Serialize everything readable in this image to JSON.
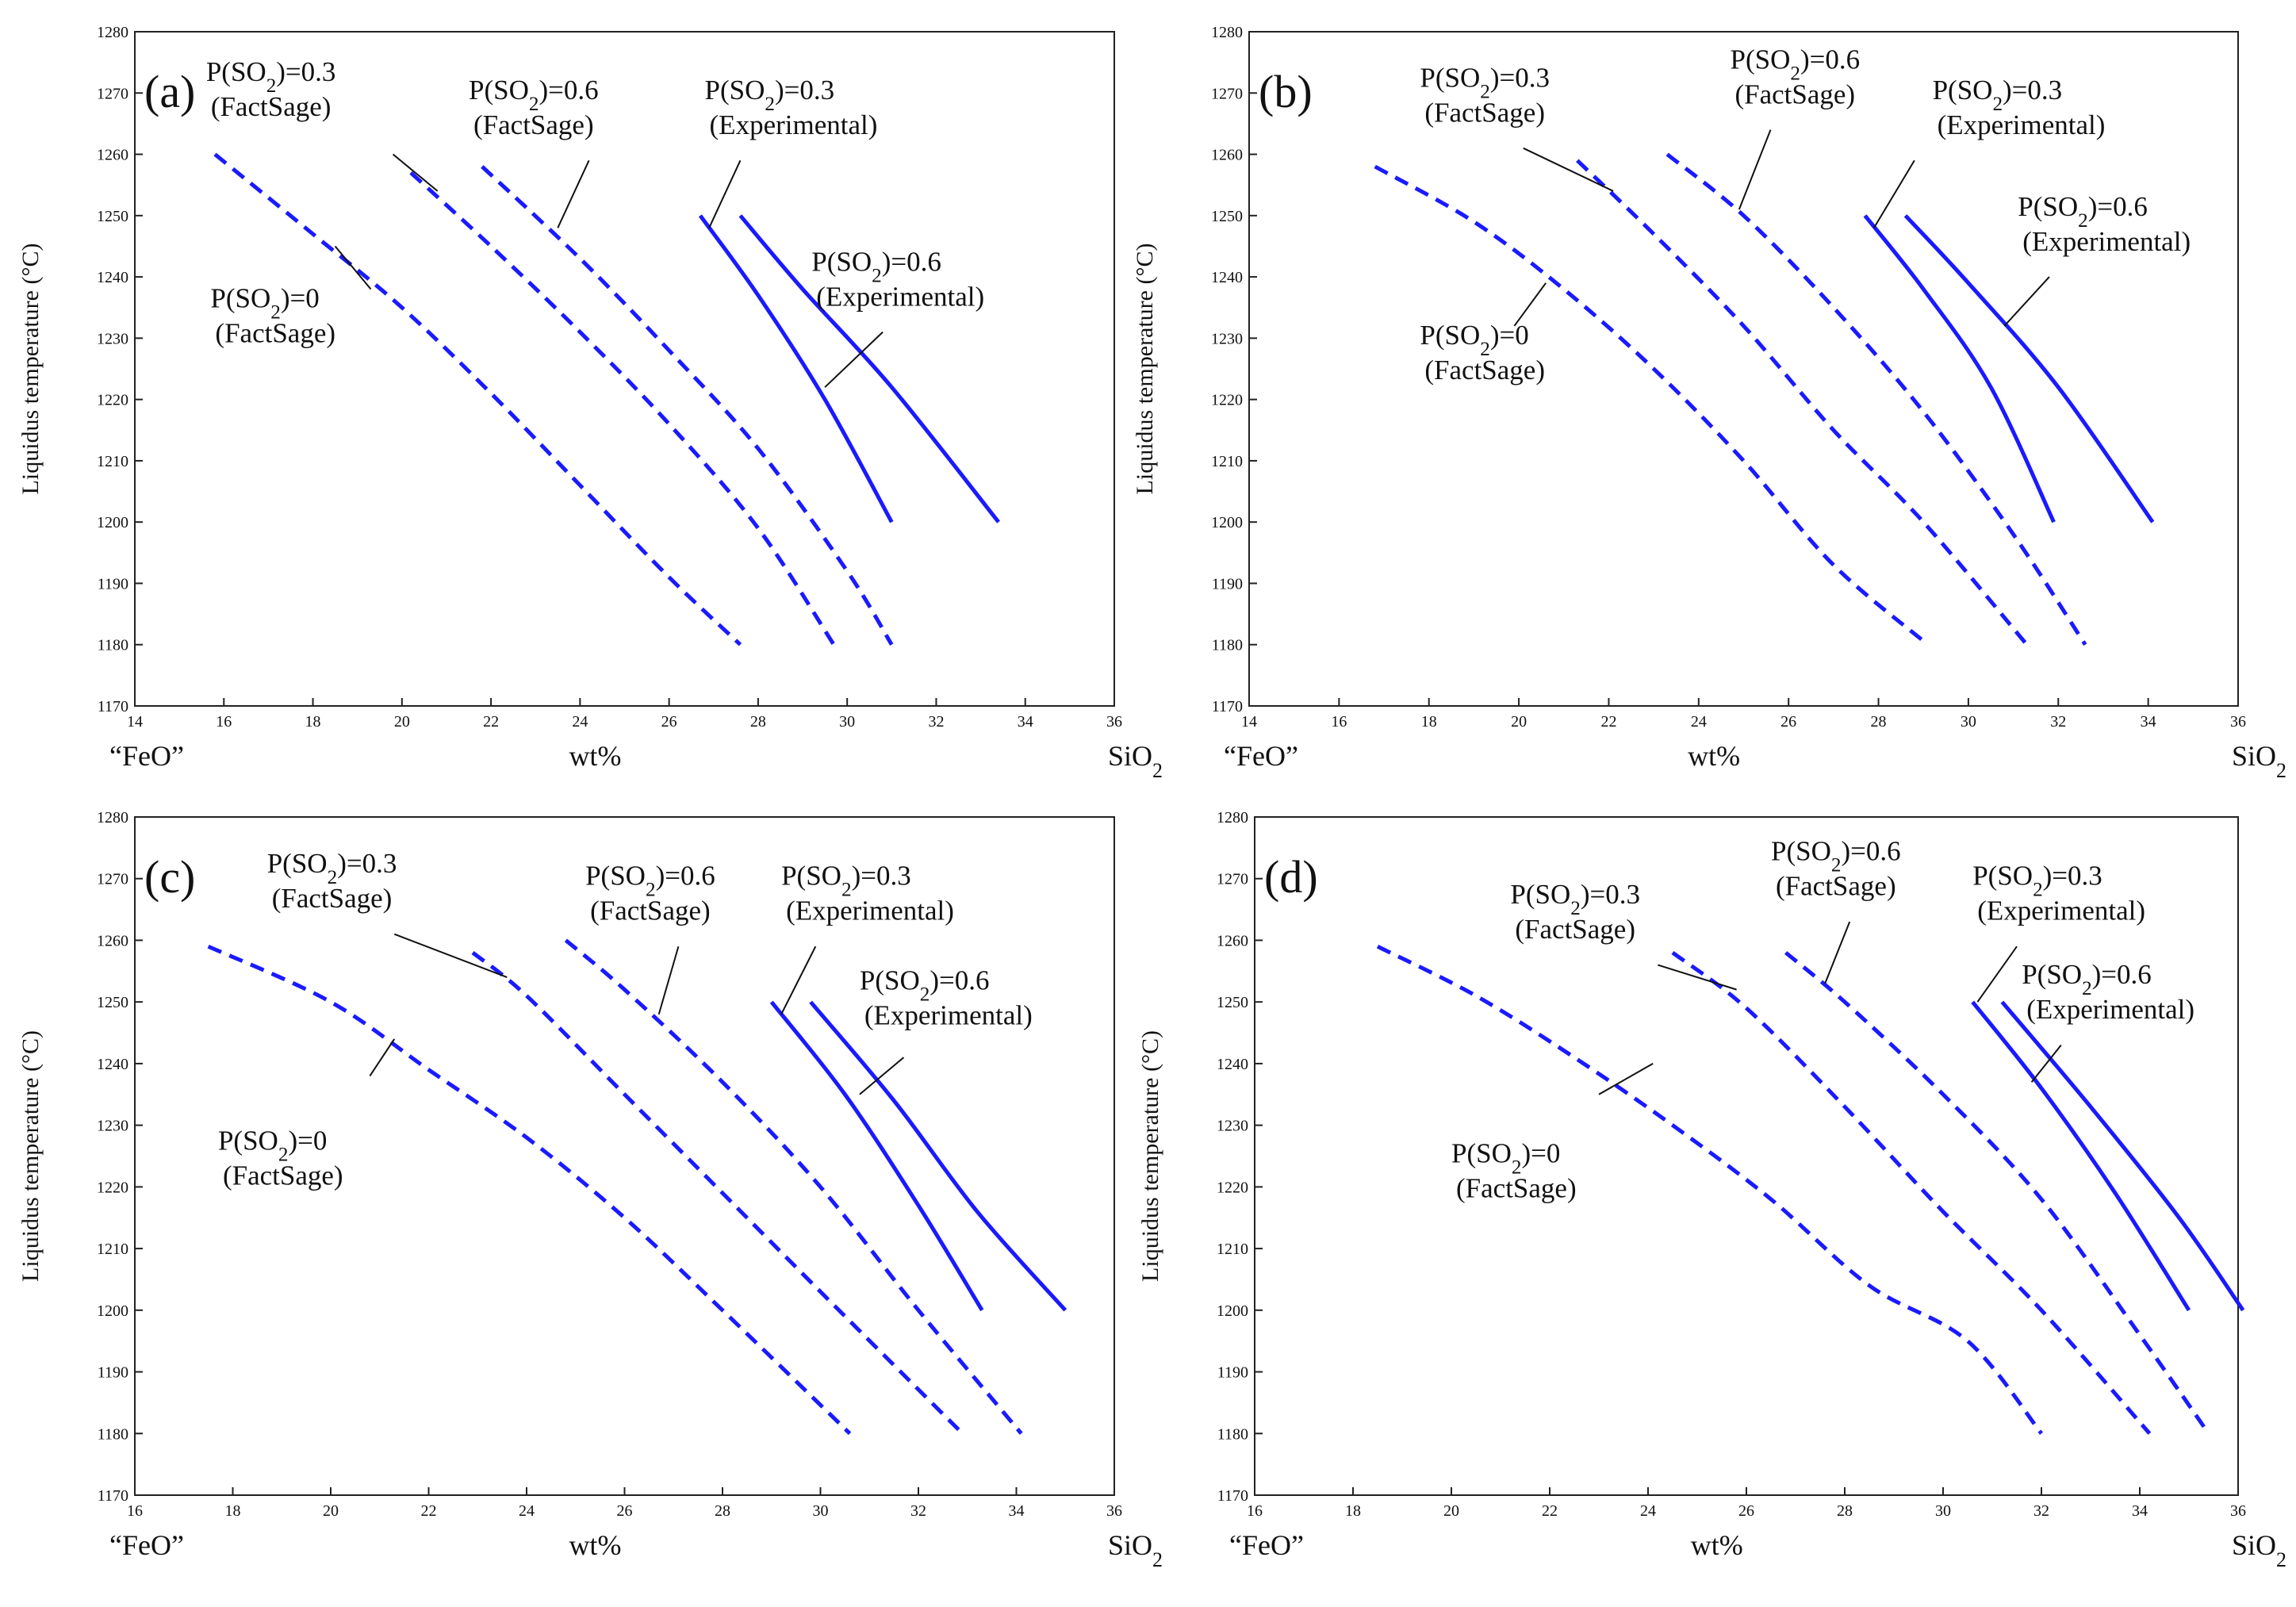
{
  "chart_data": [
    {
      "type": "line",
      "panel": "(a)",
      "xlim": [
        14,
        36
      ],
      "ylim": [
        1170,
        1280
      ],
      "xticks": [
        14,
        16,
        18,
        20,
        22,
        24,
        26,
        28,
        30,
        32,
        34,
        36
      ],
      "yticks": [
        1170,
        1180,
        1190,
        1200,
        1210,
        1220,
        1230,
        1240,
        1250,
        1260,
        1270,
        1280
      ],
      "xlabel": "wt%",
      "x_left_label": "“FeO”",
      "x_right_label": "SiO2",
      "ylabel": "Liquidus temperature (°C)",
      "series": [
        {
          "name": "P(SO2)=0 (FactSage)",
          "style": "dashed",
          "x": [
            15.8,
            18,
            20,
            22,
            24,
            26,
            27.6
          ],
          "y": [
            1260,
            1247,
            1235,
            1221,
            1206,
            1191,
            1180
          ],
          "label": {
            "line1": "P(SO2)=0",
            "line2": "(FactSage)",
            "anchor": "left",
            "tx": 15.7,
            "ty": 1235,
            "lx1": 19.3,
            "ly1": 1238,
            "lx2": 18.5,
            "ly2": 1245
          }
        },
        {
          "name": "P(SO2)=0.3 (FactSage)",
          "style": "dashed",
          "x": [
            20.2,
            22,
            24,
            26,
            28,
            29.7
          ],
          "y": [
            1257,
            1245,
            1231,
            1216,
            1199,
            1180
          ],
          "label": {
            "line1": "P(SO2)=0.3",
            "line2": "(FactSage)",
            "anchor": "left",
            "tx": 15.6,
            "ty": 1272,
            "lx1": 19.8,
            "ly1": 1260,
            "lx2": 20.8,
            "ly2": 1254
          }
        },
        {
          "name": "P(SO2)=0.6 (FactSage)",
          "style": "dashed",
          "x": [
            21.8,
            24,
            26,
            28,
            30,
            31
          ],
          "y": [
            1258,
            1243,
            1228,
            1212,
            1192,
            1180
          ],
          "label": {
            "line1": "P(SO2)=0.6",
            "line2": "(FactSage)",
            "anchor": "left",
            "tx": 21.5,
            "ty": 1269,
            "lx1": 24.2,
            "ly1": 1259,
            "lx2": 23.5,
            "ly2": 1248
          }
        },
        {
          "name": "P(SO2)=0.3 (Experimental)",
          "style": "solid",
          "x": [
            26.7,
            28,
            29.5,
            31
          ],
          "y": [
            1250,
            1237,
            1220,
            1200
          ],
          "label": {
            "line1": "P(SO2)=0.3",
            "line2": "(Experimental)",
            "anchor": "left",
            "tx": 26.8,
            "ty": 1269,
            "lx1": 27.6,
            "ly1": 1259,
            "lx2": 26.9,
            "ly2": 1248
          }
        },
        {
          "name": "P(SO2)=0.6 (Experimental)",
          "style": "solid",
          "x": [
            27.6,
            29,
            31,
            33.4
          ],
          "y": [
            1250,
            1238,
            1222,
            1200
          ],
          "label": {
            "line1": "P(SO2)=0.6",
            "line2": "(Experimental)",
            "anchor": "left",
            "tx": 29.2,
            "ty": 1241,
            "lx1": 30.8,
            "ly1": 1231,
            "lx2": 29.5,
            "ly2": 1222
          }
        }
      ]
    },
    {
      "type": "line",
      "panel": "(b)",
      "xlim": [
        14,
        36
      ],
      "ylim": [
        1170,
        1280
      ],
      "xticks": [
        14,
        16,
        18,
        20,
        22,
        24,
        26,
        28,
        30,
        32,
        34,
        36
      ],
      "yticks": [
        1170,
        1180,
        1190,
        1200,
        1210,
        1220,
        1230,
        1240,
        1250,
        1260,
        1270,
        1280
      ],
      "xlabel": "wt%",
      "x_left_label": "“FeO”",
      "x_right_label": "SiO2",
      "ylabel": "Liquidus temperature (°C)",
      "series": [
        {
          "name": "P(SO2)=0 (FactSage)",
          "style": "dashed",
          "x": [
            16.8,
            19,
            21,
            23,
            25,
            27,
            29.1
          ],
          "y": [
            1258,
            1249,
            1238,
            1225,
            1210,
            1193,
            1180
          ],
          "label": {
            "line1": "P(SO2)=0",
            "line2": "(FactSage)",
            "anchor": "left",
            "tx": 17.8,
            "ty": 1229,
            "lx1": 19.9,
            "ly1": 1232,
            "lx2": 20.6,
            "ly2": 1239
          }
        },
        {
          "name": "P(SO2)=0.3 (FactSage)",
          "style": "dashed",
          "x": [
            21.3,
            23,
            25,
            27,
            29,
            31.3
          ],
          "y": [
            1259,
            1247,
            1232,
            1215,
            1200,
            1180
          ],
          "label": {
            "line1": "P(SO2)=0.3",
            "line2": "(FactSage)",
            "anchor": "left",
            "tx": 17.8,
            "ty": 1271,
            "lx1": 20.1,
            "ly1": 1261,
            "lx2": 22.1,
            "ly2": 1254
          }
        },
        {
          "name": "P(SO2)=0.6 (FactSage)",
          "style": "dashed",
          "x": [
            23.3,
            25,
            27,
            29,
            31,
            32.6
          ],
          "y": [
            1260,
            1250,
            1235,
            1218,
            1198,
            1180
          ],
          "label": {
            "line1": "P(SO2)=0.6",
            "line2": "(FactSage)",
            "anchor": "left",
            "tx": 24.7,
            "ty": 1274,
            "lx1": 25.6,
            "ly1": 1264,
            "lx2": 24.9,
            "ly2": 1251
          }
        },
        {
          "name": "P(SO2)=0.3 (Experimental)",
          "style": "solid",
          "x": [
            27.7,
            29,
            30.5,
            31.9
          ],
          "y": [
            1250,
            1238,
            1222,
            1200
          ],
          "label": {
            "line1": "P(SO2)=0.3",
            "line2": "(Experimental)",
            "anchor": "left",
            "tx": 29.2,
            "ty": 1269,
            "lx1": 28.8,
            "ly1": 1259,
            "lx2": 27.9,
            "ly2": 1248
          }
        },
        {
          "name": "P(SO2)=0.6 (Experimental)",
          "style": "solid",
          "x": [
            28.6,
            30,
            32,
            34.1
          ],
          "y": [
            1250,
            1239,
            1222,
            1200
          ],
          "label": {
            "line1": "P(SO2)=0.6",
            "line2": "(Experimental)",
            "anchor": "left",
            "tx": 31.1,
            "ty": 1250,
            "lx1": 31.8,
            "ly1": 1240,
            "lx2": 30.8,
            "ly2": 1232
          }
        }
      ]
    },
    {
      "type": "line",
      "panel": "(c)",
      "xlim": [
        16,
        36
      ],
      "ylim": [
        1170,
        1280
      ],
      "xticks": [
        16,
        18,
        20,
        22,
        24,
        26,
        28,
        30,
        32,
        34,
        36
      ],
      "yticks": [
        1170,
        1180,
        1190,
        1200,
        1210,
        1220,
        1230,
        1240,
        1250,
        1260,
        1270,
        1280
      ],
      "xlabel": "wt%",
      "x_left_label": "“FeO”",
      "x_right_label": "SiO2",
      "ylabel": "Liquidus temperature (°C)",
      "series": [
        {
          "name": "P(SO2)=0 (FactSage)",
          "style": "dashed",
          "x": [
            17.5,
            20,
            22,
            24,
            26,
            28,
            30.6
          ],
          "y": [
            1259,
            1250,
            1239,
            1228,
            1215,
            1200,
            1180
          ],
          "label": {
            "line1": "P(SO2)=0",
            "line2": "(FactSage)",
            "anchor": "left",
            "tx": 17.7,
            "ty": 1226,
            "lx1": 20.8,
            "ly1": 1238,
            "lx2": 21.3,
            "ly2": 1244
          }
        },
        {
          "name": "P(SO2)=0.3 (FactSage)",
          "style": "dashed",
          "x": [
            22.9,
            24,
            26,
            28,
            30,
            32.9
          ],
          "y": [
            1258,
            1251,
            1235,
            1219,
            1203,
            1180
          ],
          "label": {
            "line1": "P(SO2)=0.3",
            "line2": "(FactSage)",
            "anchor": "left",
            "tx": 18.7,
            "ty": 1271,
            "lx1": 21.3,
            "ly1": 1261,
            "lx2": 23.6,
            "ly2": 1254
          }
        },
        {
          "name": "P(SO2)=0.6 (FactSage)",
          "style": "dashed",
          "x": [
            24.8,
            26,
            28,
            30,
            32,
            34.1
          ],
          "y": [
            1260,
            1252,
            1237,
            1220,
            1200,
            1180
          ],
          "label": {
            "line1": "P(SO2)=0.6",
            "line2": "(FactSage)",
            "anchor": "left",
            "tx": 25.2,
            "ty": 1269,
            "lx1": 27.1,
            "ly1": 1259,
            "lx2": 26.7,
            "ly2": 1248
          }
        },
        {
          "name": "P(SO2)=0.3 (Experimental)",
          "style": "solid",
          "x": [
            29,
            30.5,
            32,
            33.3
          ],
          "y": [
            1250,
            1235,
            1217,
            1200
          ],
          "label": {
            "line1": "P(SO2)=0.3",
            "line2": "(Experimental)",
            "anchor": "left",
            "tx": 29.2,
            "ty": 1269,
            "lx1": 29.9,
            "ly1": 1259,
            "lx2": 29.2,
            "ly2": 1248
          }
        },
        {
          "name": "P(SO2)=0.6 (Experimental)",
          "style": "solid",
          "x": [
            29.8,
            31.5,
            33.2,
            35
          ],
          "y": [
            1250,
            1234,
            1216,
            1200
          ],
          "label": {
            "line1": "P(SO2)=0.6",
            "line2": "(Experimental)",
            "anchor": "left",
            "tx": 30.8,
            "ty": 1252,
            "lx1": 31.7,
            "ly1": 1241,
            "lx2": 30.8,
            "ly2": 1235
          }
        }
      ]
    },
    {
      "type": "line",
      "panel": "(d)",
      "xlim": [
        16,
        36
      ],
      "ylim": [
        1170,
        1280
      ],
      "xticks": [
        16,
        18,
        20,
        22,
        24,
        26,
        28,
        30,
        32,
        34,
        36
      ],
      "yticks": [
        1170,
        1180,
        1190,
        1200,
        1210,
        1220,
        1230,
        1240,
        1250,
        1260,
        1270,
        1280
      ],
      "xlabel": "wt%",
      "x_left_label": "“FeO”",
      "x_right_label": "SiO2",
      "ylabel": "Liquidus temperature (°C)",
      "series": [
        {
          "name": "P(SO2)=0 (FactSage)",
          "style": "dashed",
          "x": [
            18.5,
            20.5,
            22.5,
            24.5,
            26.5,
            28.5,
            30.5,
            32
          ],
          "y": [
            1259,
            1251,
            1241,
            1230,
            1218,
            1204,
            1195,
            1180
          ],
          "label": {
            "line1": "P(SO2)=0",
            "line2": "(FactSage)",
            "anchor": "left",
            "tx": 20,
            "ty": 1224,
            "lx1": 23,
            "ly1": 1235,
            "lx2": 24.1,
            "ly2": 1240
          }
        },
        {
          "name": "P(SO2)=0.3 (FactSage)",
          "style": "dashed",
          "x": [
            24.5,
            26,
            28,
            30,
            32,
            34.2
          ],
          "y": [
            1258,
            1249,
            1233,
            1216,
            1200,
            1180
          ],
          "label": {
            "line1": "P(SO2)=0.3",
            "line2": "(FactSage)",
            "anchor": "left",
            "tx": 21.2,
            "ty": 1266,
            "lx1": 24.2,
            "ly1": 1256,
            "lx2": 25.8,
            "ly2": 1252
          }
        },
        {
          "name": "P(SO2)=0.6 (FactSage)",
          "style": "dashed",
          "x": [
            26.8,
            28,
            30,
            32,
            34,
            35.4
          ],
          "y": [
            1258,
            1250,
            1235,
            1218,
            1196,
            1180
          ],
          "label": {
            "line1": "P(SO2)=0.6",
            "line2": "(FactSage)",
            "anchor": "left",
            "tx": 26.5,
            "ty": 1273,
            "lx1": 28.1,
            "ly1": 1263,
            "lx2": 27.6,
            "ly2": 1253
          }
        },
        {
          "name": "P(SO2)=0.3 (Experimental)",
          "style": "solid",
          "x": [
            30.6,
            32,
            33.5,
            35
          ],
          "y": [
            1250,
            1236,
            1219,
            1200
          ],
          "label": {
            "line1": "P(SO2)=0.3",
            "line2": "(Experimental)",
            "anchor": "left",
            "tx": 30.6,
            "ty": 1269,
            "lx1": 31.5,
            "ly1": 1259,
            "lx2": 30.7,
            "ly2": 1250
          }
        },
        {
          "name": "P(SO2)=0.6 (Experimental)",
          "style": "solid",
          "x": [
            31.2,
            33,
            34.8,
            36.1
          ],
          "y": [
            1250,
            1233,
            1215,
            1200
          ],
          "label": {
            "line1": "P(SO2)=0.6",
            "line2": "(Experimental)",
            "anchor": "left",
            "tx": 31.6,
            "ty": 1253,
            "lx1": 32.4,
            "ly1": 1243,
            "lx2": 31.8,
            "ly2": 1237
          }
        }
      ]
    }
  ]
}
